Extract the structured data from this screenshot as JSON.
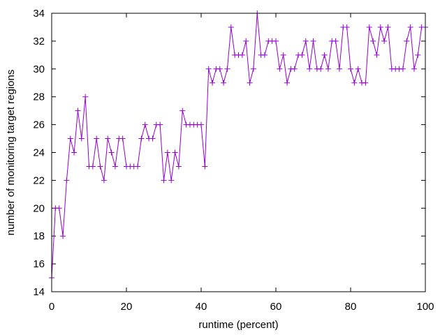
{
  "chart_data": {
    "type": "line",
    "title": "",
    "xlabel": "runtime (percent)",
    "ylabel": "number of monitoring target regions",
    "xlim": [
      0,
      100
    ],
    "ylim": [
      14,
      34
    ],
    "x_ticks": [
      0,
      20,
      40,
      60,
      80,
      100
    ],
    "y_ticks": [
      14,
      16,
      18,
      20,
      22,
      24,
      26,
      28,
      30,
      32,
      34
    ],
    "grid": false,
    "legend": "none",
    "marker": "plus",
    "series": [
      {
        "color": "#9400d3",
        "x": [
          0,
          1,
          2,
          3,
          4,
          5,
          6,
          7,
          8,
          9,
          10,
          11,
          12,
          13,
          14,
          15,
          16,
          17,
          18,
          19,
          20,
          21,
          22,
          23,
          24,
          25,
          26,
          27,
          28,
          29,
          30,
          31,
          32,
          33,
          34,
          35,
          36,
          37,
          38,
          39,
          40,
          41,
          42,
          43,
          44,
          45,
          46,
          47,
          48,
          49,
          50,
          51,
          52,
          53,
          54,
          55,
          56,
          57,
          58,
          59,
          60,
          61,
          62,
          63,
          64,
          65,
          66,
          67,
          68,
          69,
          70,
          71,
          72,
          73,
          74,
          75,
          76,
          77,
          78,
          79,
          80,
          81,
          82,
          83,
          84,
          85,
          86,
          87,
          88,
          89,
          90,
          91,
          92,
          93,
          94,
          95,
          96,
          97,
          98,
          99,
          100
        ],
        "y": [
          15,
          20,
          20,
          18,
          22,
          25,
          24,
          27,
          25,
          28,
          23,
          23,
          25,
          23,
          22,
          25,
          24,
          23,
          25,
          25,
          23,
          23,
          23,
          23,
          25,
          26,
          25,
          25,
          26,
          26,
          22,
          24,
          22,
          24,
          23,
          27,
          26,
          26,
          26,
          26,
          26,
          23,
          30,
          29,
          30,
          30,
          29,
          30,
          33,
          31,
          31,
          31,
          32,
          29,
          30,
          34,
          31,
          31,
          32,
          32,
          32,
          30,
          31,
          29,
          30,
          30,
          31,
          31,
          32,
          30,
          32,
          30,
          30,
          31,
          30,
          32,
          32,
          30,
          33,
          33,
          30,
          29,
          30,
          29,
          29,
          33,
          32,
          31,
          33,
          32,
          33,
          30,
          30,
          30,
          30,
          32,
          33,
          30,
          31,
          33,
          33
        ]
      }
    ]
  }
}
